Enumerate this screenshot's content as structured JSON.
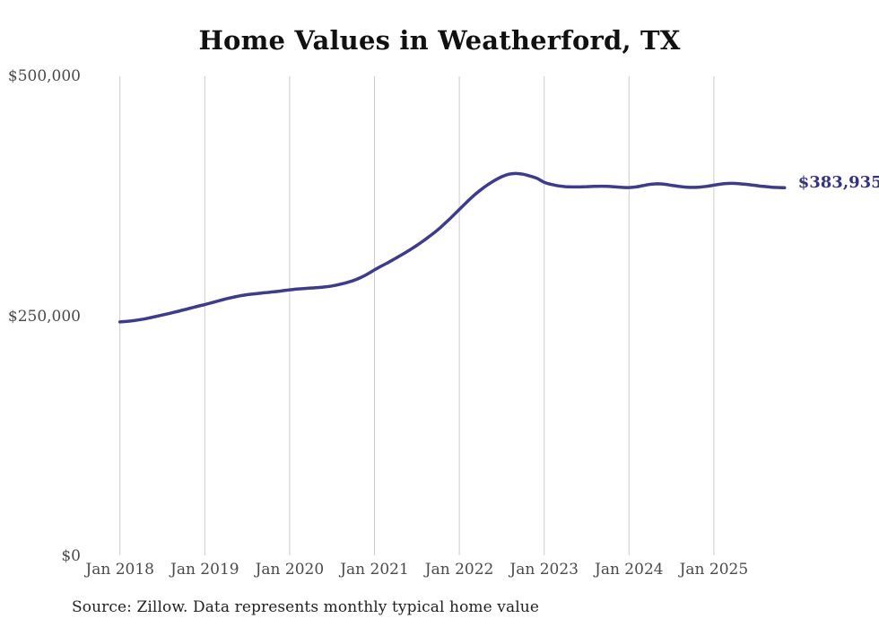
{
  "page": {
    "background_color": "#ffffff"
  },
  "chart_data": {
    "type": "line",
    "title": "Home Values in Weatherford, TX",
    "source_note": "Source: Zillow. Data represents monthly typical home value",
    "end_label": "$383,935",
    "latest_value": 383935,
    "xlabel": "",
    "ylabel": "",
    "ylim": [
      0,
      500000
    ],
    "grid": "vertical-only",
    "legend": "none",
    "line_color": "#3d3b90",
    "end_label_color": "#333189",
    "gridline_color": "#cccccc",
    "tick_label_color": "#4a4a4a",
    "y_ticks": [
      {
        "label": "$0",
        "value": 0
      },
      {
        "label": "$250,000",
        "value": 250000
      },
      {
        "label": "$500,000",
        "value": 500000
      }
    ],
    "x_ticks": [
      {
        "label": "Jan 2018",
        "year": 2018
      },
      {
        "label": "Jan 2019",
        "year": 2019
      },
      {
        "label": "Jan 2020",
        "year": 2020
      },
      {
        "label": "Jan 2021",
        "year": 2021
      },
      {
        "label": "Jan 2022",
        "year": 2022
      },
      {
        "label": "Jan 2023",
        "year": 2023
      },
      {
        "label": "Jan 2024",
        "year": 2024
      },
      {
        "label": "Jan 2025",
        "year": 2025
      }
    ],
    "series": [
      {
        "name": "Monthly typical home value",
        "start_month": "2018-01",
        "frequency": "monthly",
        "values": [
          244000,
          244600,
          245400,
          246500,
          247900,
          249500,
          251200,
          252900,
          254700,
          256500,
          258400,
          260300,
          262100,
          264100,
          266100,
          268000,
          269700,
          271200,
          272400,
          273300,
          274100,
          274800,
          275600,
          276500,
          277500,
          278200,
          278800,
          279300,
          279800,
          280500,
          281500,
          283000,
          284900,
          287100,
          290100,
          293800,
          298200,
          302300,
          306200,
          310300,
          314600,
          319100,
          323800,
          329000,
          334500,
          340300,
          346900,
          353900,
          361200,
          368500,
          375400,
          381500,
          386800,
          391500,
          395300,
          397900,
          398700,
          397900,
          396000,
          393600,
          389500,
          387300,
          385800,
          385000,
          384700,
          384700,
          385000,
          385200,
          385400,
          385300,
          384800,
          384200,
          384000,
          384700,
          386100,
          387400,
          387900,
          387500,
          386400,
          385300,
          384500,
          384200,
          384500,
          385300,
          386500,
          387700,
          388300,
          388300,
          387800,
          387000,
          386100,
          385200,
          384500,
          384100,
          383935
        ]
      }
    ]
  }
}
